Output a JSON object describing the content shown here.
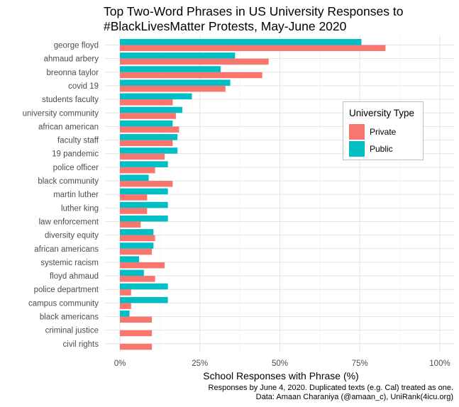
{
  "chart_data": {
    "type": "bar",
    "orientation": "horizontal",
    "title_lines": [
      "Top Two-Word Phrases in US University Responses to",
      "#BlackLivesMatter Protests, May-June 2020"
    ],
    "xlabel": "School Responses with Phrase (%)",
    "ylabel": "",
    "xlim": [
      0,
      100
    ],
    "xticks": [
      0,
      25,
      50,
      75,
      100
    ],
    "xtick_labels": [
      "0%",
      "25%",
      "50%",
      "75%",
      "100%"
    ],
    "grid": true,
    "legend": {
      "title": "University Type",
      "position": "right"
    },
    "categories": [
      "george floyd",
      "ahmaud arbery",
      "breonna taylor",
      "covid 19",
      "students faculty",
      "university community",
      "african american",
      "faculty staff",
      "19 pandemic",
      "police officer",
      "black community",
      "martin luther",
      "luther king",
      "law enforcement",
      "diversity equity",
      "african americans",
      "systemic racism",
      "floyd ahmaud",
      "police department",
      "campus community",
      "black americans",
      "criminal justice",
      "civil rights"
    ],
    "series": [
      {
        "name": "Public",
        "color": "#00BFC4",
        "values": [
          75.5,
          36,
          31.5,
          34.5,
          22.5,
          19.5,
          16.5,
          18,
          18,
          15,
          9,
          15,
          15,
          15,
          10.5,
          10.5,
          6,
          7.5,
          15,
          15,
          3,
          0,
          0
        ]
      },
      {
        "name": "Private",
        "color": "#F8766D",
        "values": [
          83,
          46.5,
          44.5,
          33,
          16.5,
          17.5,
          18.5,
          16.5,
          14,
          11,
          16.5,
          8.5,
          8.5,
          6.5,
          11,
          10,
          14,
          11,
          3.5,
          3.5,
          10,
          10,
          10
        ]
      }
    ],
    "caption_lines": [
      "Responses by June 4, 2020. Duplicated texts (e.g. Cal) treated as one.",
      "Data: Amaan Charaniya (@amaan_c), UniRank(4icu.org)"
    ]
  }
}
